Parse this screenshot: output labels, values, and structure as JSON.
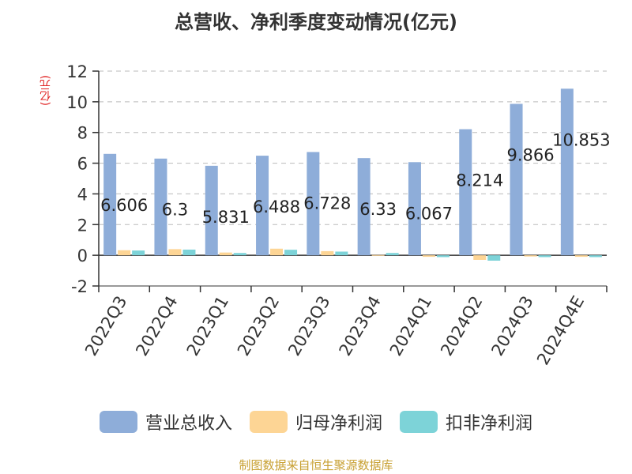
{
  "title": "总营收、净利季度变动情况(亿元)",
  "unit_label": "(亿元)",
  "source": "制图数据来自恒生聚源数据库",
  "colors": {
    "revenue": "#8eadd9",
    "net_profit": "#fdd595",
    "deducted_profit": "#7dd3d8",
    "axis": "#333333",
    "grid": "#bbbbbb",
    "label": "#222222"
  },
  "chart_data": {
    "type": "bar",
    "title": "总营收、净利季度变动情况(亿元)",
    "ylabel": "(亿元)",
    "xlabel": "",
    "ylim": [
      -2,
      12
    ],
    "yticks": [
      -2,
      0,
      2,
      4,
      6,
      8,
      10,
      12
    ],
    "grid": true,
    "legend_position": "bottom",
    "categories": [
      "2022Q3",
      "2022Q4",
      "2023Q1",
      "2023Q2",
      "2023Q3",
      "2023Q4",
      "2024Q1",
      "2024Q2",
      "2024Q3",
      "2024Q4E"
    ],
    "series": [
      {
        "name": "营业总收入",
        "values": [
          6.606,
          6.3,
          5.831,
          6.488,
          6.728,
          6.33,
          6.067,
          8.214,
          9.866,
          10.853
        ],
        "data_labels": [
          "6.606",
          "6.3",
          "5.831",
          "6.488",
          "6.728",
          "6.33",
          "6.067",
          "8.214",
          "9.866",
          "10.853"
        ]
      },
      {
        "name": "归母净利润",
        "values": [
          0.33,
          0.4,
          0.18,
          0.43,
          0.27,
          0.02,
          -0.1,
          -0.3,
          -0.08,
          -0.1
        ]
      },
      {
        "name": "扣非净利润",
        "values": [
          0.31,
          0.37,
          0.15,
          0.36,
          0.24,
          0.15,
          -0.12,
          -0.35,
          -0.12,
          -0.12
        ]
      }
    ]
  }
}
